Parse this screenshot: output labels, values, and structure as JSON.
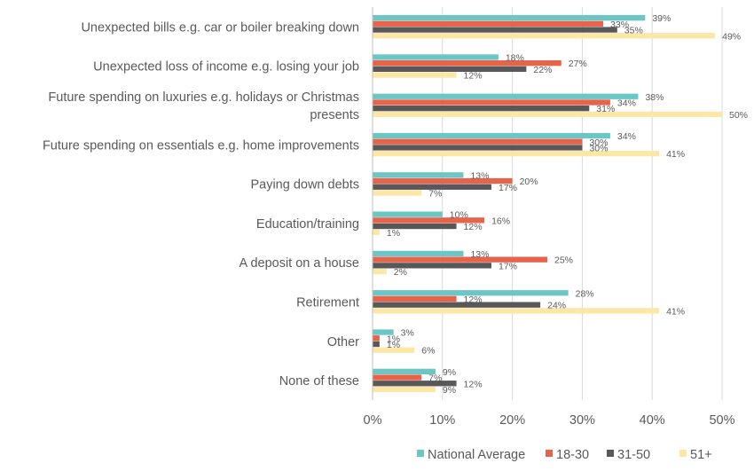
{
  "chart_data": {
    "type": "bar",
    "orientation": "horizontal",
    "categories": [
      [
        "Unexpected bills e.g. car or boiler breaking down"
      ],
      [
        "Unexpected loss of income e.g. losing your job"
      ],
      [
        "Future spending on luxuries e.g. holidays or Christmas",
        "presents"
      ],
      [
        "Future spending on essentials e.g. home improvements"
      ],
      [
        "Paying down debts"
      ],
      [
        "Education/training"
      ],
      [
        "A deposit on a house"
      ],
      [
        "Retirement"
      ],
      [
        "Other"
      ],
      [
        "None of these"
      ]
    ],
    "series": [
      {
        "name": "National Average",
        "color": "#6cc6c6",
        "values": [
          39,
          18,
          38,
          34,
          13,
          10,
          13,
          28,
          3,
          9
        ],
        "labels": [
          "39%",
          "18%",
          "38%",
          "34%",
          "13%",
          "10%",
          "13%",
          "28%",
          "3%",
          "9%"
        ]
      },
      {
        "name": "18-30",
        "color": "#e6654a",
        "values": [
          33,
          27,
          34,
          30,
          20,
          16,
          25,
          12,
          1,
          7
        ],
        "labels": [
          "33%",
          "27%",
          "34%",
          "30%",
          "20%",
          "16%",
          "25%",
          "12%",
          "1%",
          "7%"
        ]
      },
      {
        "name": "31-50",
        "color": "#58585a",
        "values": [
          35,
          22,
          31,
          30,
          17,
          12,
          17,
          24,
          1,
          12
        ],
        "labels": [
          "35%",
          "22%",
          "31%",
          "30%",
          "17%",
          "12%",
          "17%",
          "24%",
          "1%",
          "12%"
        ]
      },
      {
        "name": "51+",
        "color": "#fbe8a6",
        "values": [
          49,
          12,
          50,
          41,
          7,
          1,
          2,
          41,
          6,
          9
        ],
        "labels": [
          "49%",
          "12%",
          "50%",
          "41%",
          "7%",
          "1%",
          "2%",
          "41%",
          "6%",
          "9%"
        ]
      }
    ],
    "xlim": [
      0,
      50
    ],
    "xticks": [
      0,
      10,
      20,
      30,
      40,
      50
    ],
    "xtick_labels": [
      "0%",
      "10%",
      "20%",
      "30%",
      "40%",
      "50%"
    ],
    "grid": "vertical",
    "legend": "bottom",
    "title": "",
    "xlabel": "",
    "ylabel": ""
  }
}
